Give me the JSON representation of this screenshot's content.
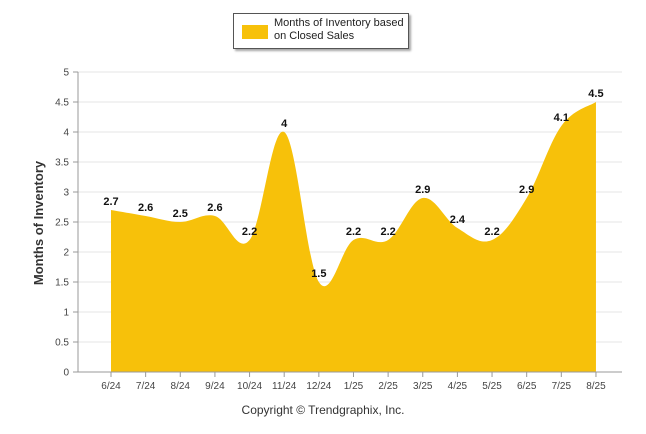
{
  "colors": {
    "area": "#f7c10a",
    "grid": "#e6e6e6",
    "axis": "#999999"
  },
  "legend": {
    "label": "Months of Inventory based on Closed Sales"
  },
  "footer": {
    "copyright": "Copyright © Trendgraphix, Inc."
  },
  "chart_data": {
    "type": "area",
    "title": "",
    "xlabel": "",
    "ylabel": "Months of Inventory",
    "ylim": [
      0,
      5
    ],
    "yticks": [
      "0",
      "0.5",
      "1",
      "1.5",
      "2",
      "2.5",
      "3",
      "3.5",
      "4",
      "4.5",
      "5"
    ],
    "grid": true,
    "legend_position": "top-center",
    "categories": [
      "6/24",
      "7/24",
      "8/24",
      "9/24",
      "10/24",
      "11/24",
      "12/24",
      "1/25",
      "2/25",
      "3/25",
      "4/25",
      "5/25",
      "6/25",
      "7/25",
      "8/25"
    ],
    "series": [
      {
        "name": "Months of Inventory based on Closed Sales",
        "values": [
          2.7,
          2.6,
          2.5,
          2.6,
          2.2,
          4,
          1.5,
          2.2,
          2.2,
          2.9,
          2.4,
          2.2,
          2.9,
          4.1,
          4.5
        ],
        "labels": [
          "2.7",
          "2.6",
          "2.5",
          "2.6",
          "2.2",
          "4",
          "1.5",
          "2.2",
          "2.2",
          "2.9",
          "2.4",
          "2.2",
          "2.9",
          "4.1",
          "4.5"
        ]
      }
    ]
  }
}
